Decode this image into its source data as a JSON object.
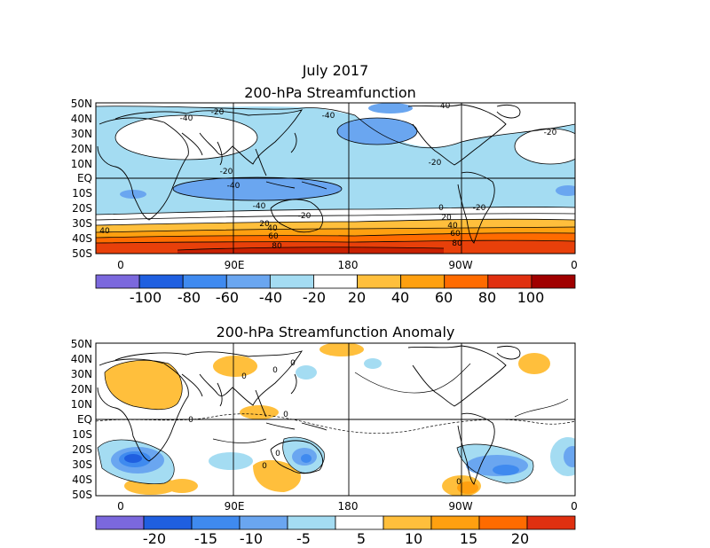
{
  "title_line1": "July 2017",
  "chart_data": [
    {
      "type": "heatmap",
      "title": "200-hPa Streamfunction",
      "y_ticks": [
        "50N",
        "40N",
        "30N",
        "20N",
        "10N",
        "EQ",
        "10S",
        "20S",
        "30S",
        "40S",
        "50S"
      ],
      "x_ticks": [
        "0",
        "90E",
        "180",
        "90W",
        "0"
      ],
      "colorbar": {
        "labels": [
          "-100",
          "-80",
          "-60",
          "-40",
          "-20",
          "20",
          "40",
          "60",
          "80",
          "100"
        ],
        "colors": [
          "#7b68dd",
          "#1f5fe0",
          "#3f8aef",
          "#6aa6f0",
          "#a4dcf2",
          "#ffffff",
          "#ffbf3c",
          "#ffa010",
          "#ff6b00",
          "#e03010",
          "#a00000"
        ]
      },
      "contour_labels": [
        "-20",
        "-40",
        "-20",
        "-40",
        "-20",
        "-40",
        "-20",
        "-40",
        "-20",
        "0",
        "20",
        "40",
        "60",
        "80",
        "20",
        "40",
        "60",
        "80",
        "-20",
        "-40",
        "40"
      ]
    },
    {
      "type": "heatmap",
      "title": "200-hPa Streamfunction Anomaly",
      "y_ticks": [
        "50N",
        "40N",
        "30N",
        "20N",
        "10N",
        "EQ",
        "10S",
        "20S",
        "30S",
        "40S",
        "50S"
      ],
      "x_ticks": [
        "0",
        "90E",
        "180",
        "90W",
        "0"
      ],
      "colorbar": {
        "labels": [
          "-20",
          "-15",
          "-10",
          "-5",
          "5",
          "10",
          "15",
          "20"
        ],
        "colors": [
          "#7b68dd",
          "#1f5fe0",
          "#3f8aef",
          "#6aa6f0",
          "#a4dcf2",
          "#ffffff",
          "#ffbf3c",
          "#ffa010",
          "#ff6b00",
          "#e03010"
        ]
      },
      "contour_labels": [
        "0",
        "0",
        "0",
        "0",
        "0",
        "0",
        "0",
        "0"
      ]
    }
  ]
}
